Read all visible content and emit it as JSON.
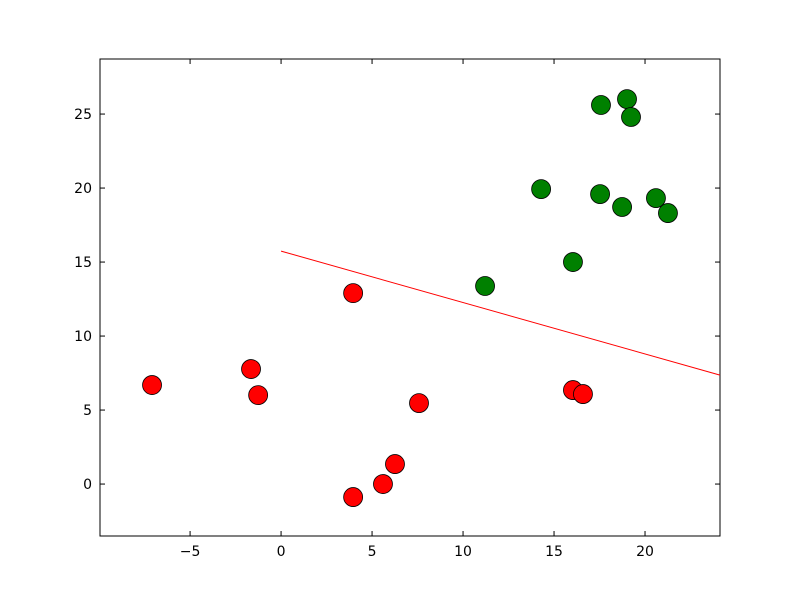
{
  "chart_data": {
    "type": "scatter",
    "xlim": [
      -9.95,
      24.12
    ],
    "ylim": [
      -3.51,
      28.72
    ],
    "xticks": [
      {
        "value": -5,
        "label": "−5"
      },
      0,
      5,
      10,
      15,
      20
    ],
    "yticks": [
      0,
      5,
      10,
      15,
      20,
      25
    ],
    "series": [
      {
        "mode": "markers",
        "color": "#ff0000",
        "x": [
          -7.09,
          -1.65,
          -1.26,
          3.96,
          7.58,
          6.26,
          5.6,
          3.96,
          16.04,
          16.59
        ],
        "y": [
          6.69,
          7.77,
          6.01,
          12.9,
          5.47,
          1.35,
          0,
          -0.88,
          6.35,
          6.08
        ]
      },
      {
        "mode": "markers",
        "color": "#008000",
        "x": [
          11.21,
          14.29,
          16.04,
          17.53,
          17.58,
          19.01,
          19.23,
          18.74,
          20.6,
          21.26
        ],
        "y": [
          13.38,
          19.93,
          15.0,
          19.59,
          25.61,
          26.01,
          24.8,
          18.72,
          19.32,
          18.31
        ]
      },
      {
        "mode": "line",
        "color": "#ff0000",
        "x": [
          0,
          24.12
        ],
        "y": [
          15.74,
          7.36
        ]
      }
    ]
  }
}
